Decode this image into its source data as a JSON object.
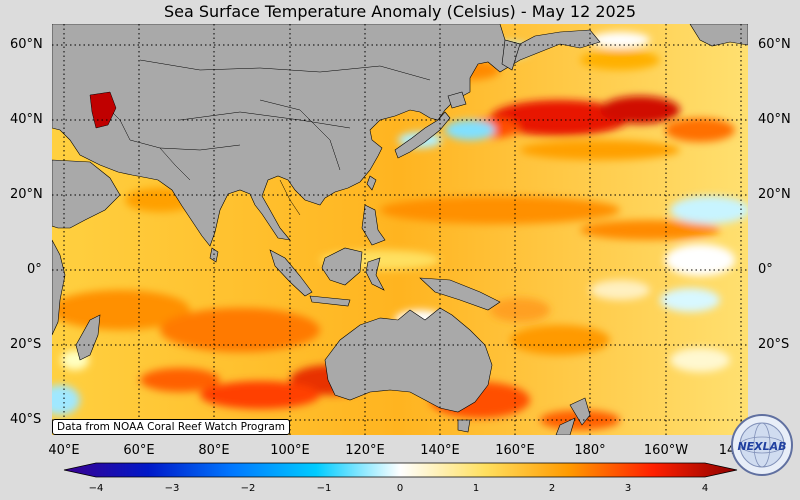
{
  "title": "Sea Surface Temperature Anomaly (Celsius) - May 12 2025",
  "credit": "Data from NOAA Coral Reef Watch Program",
  "lat_labels": [
    "60°N",
    "40°N",
    "20°N",
    "0°",
    "20°S",
    "40°S"
  ],
  "lon_labels": [
    "40°E",
    "60°E",
    "80°E",
    "100°E",
    "120°E",
    "140°E",
    "160°E",
    "180°",
    "160°W",
    "14"
  ],
  "colorbar": {
    "min": -4,
    "max": 4,
    "ticks": [
      "−4",
      "−3",
      "−2",
      "−1",
      "0",
      "1",
      "2",
      "3",
      "4"
    ],
    "colors": [
      "#3a0090",
      "#0018c8",
      "#0078ff",
      "#00ccff",
      "#ffffff",
      "#ffe060",
      "#ff9a00",
      "#ff2000",
      "#8c0000"
    ]
  },
  "logo": {
    "text": "NEXLAB",
    "icon": "nexlab-globe-logo"
  },
  "colors": {
    "land": "#a9a9a9",
    "background": "#dcdcdc",
    "grid": "#000000"
  }
}
